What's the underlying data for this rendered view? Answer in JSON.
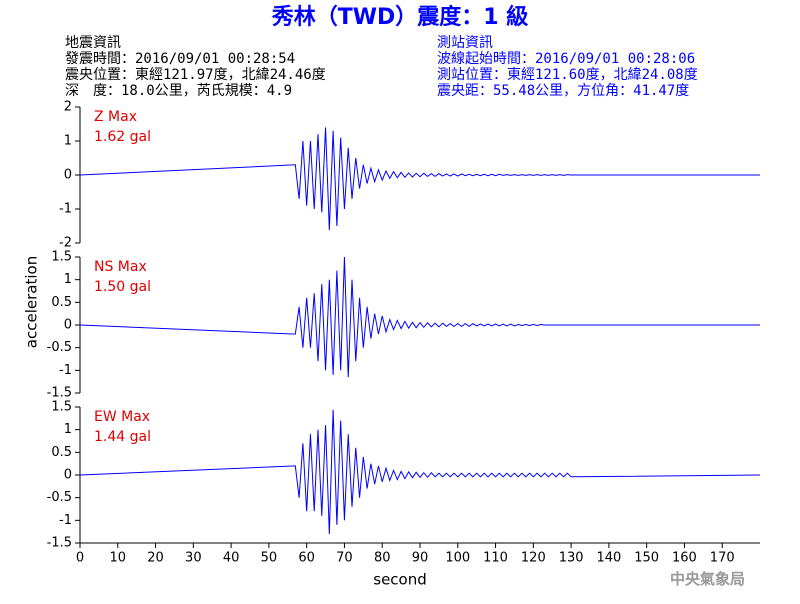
{
  "title": "秀林（TWD）震度：1 級",
  "event_info": [
    "地震資訊",
    "發震時間：2016/09/01 00:28:54",
    "震央位置：東經121.97度，北緯24.46度",
    "深　度：18.0公里，芮氏規模：4.9"
  ],
  "station_info": [
    "測站資訊",
    "波線起始時間：2016/09/01 00:28:06",
    "測站位置：東經121.60度，北緯24.08度",
    "震央距：55.48公里，方位角：41.47度"
  ],
  "ylabel": "acceleration",
  "xlabel": "second",
  "credit": "中央氣象局",
  "chart_data": [
    {
      "type": "line",
      "label": "Z Max",
      "max_label": "1.62 gal",
      "color": "#0000ff",
      "ylim": [
        -2,
        2
      ],
      "yticks": [
        -2,
        -1,
        0,
        1,
        2
      ],
      "xlim": [
        0,
        180
      ],
      "x": [
        0,
        57,
        58,
        59,
        60,
        61,
        62,
        63,
        64,
        65,
        66,
        67,
        68,
        69,
        70,
        71,
        72,
        73,
        74,
        75,
        76,
        77,
        78,
        79,
        80,
        81,
        82,
        83,
        84,
        85,
        86,
        87,
        88,
        89,
        90,
        91,
        92,
        93,
        94,
        95,
        96,
        97,
        98,
        99,
        100,
        101,
        102,
        103,
        104,
        105,
        106,
        107,
        108,
        109,
        110,
        111,
        112,
        113,
        114,
        115,
        116,
        117,
        118,
        119,
        120,
        121,
        122,
        123,
        124,
        125,
        126,
        127,
        128,
        129,
        130,
        180
      ],
      "values": [
        0,
        0.3,
        -0.7,
        1.0,
        -0.9,
        1.0,
        -1.0,
        1.2,
        -1.1,
        1.4,
        -1.62,
        1.3,
        -1.5,
        1.1,
        -1.0,
        0.8,
        -0.7,
        0.5,
        -0.4,
        0.3,
        -0.25,
        0.2,
        -0.2,
        0.15,
        -0.15,
        0.12,
        -0.1,
        0.1,
        -0.08,
        0.08,
        -0.07,
        0.06,
        -0.06,
        0.05,
        -0.05,
        0.05,
        -0.04,
        0.04,
        -0.04,
        0.04,
        -0.03,
        0.03,
        -0.03,
        0.03,
        -0.03,
        0.03,
        -0.02,
        0.02,
        -0.02,
        0.02,
        -0.02,
        0.02,
        -0.02,
        0.02,
        -0.02,
        0.02,
        -0.01,
        0.01,
        -0.01,
        0.01,
        -0.01,
        0.01,
        -0.01,
        0.01,
        -0.01,
        0.01,
        -0.01,
        0.01,
        -0.01,
        0.01,
        -0.01,
        0.01,
        -0.01,
        0.01,
        0,
        0
      ]
    },
    {
      "type": "line",
      "label": "NS Max",
      "max_label": "1.50 gal",
      "color": "#0000ff",
      "ylim": [
        -1.5,
        1.5
      ],
      "yticks": [
        -1.5,
        -1,
        -0.5,
        0,
        0.5,
        1,
        1.5
      ],
      "xlim": [
        0,
        180
      ],
      "x": [
        0,
        57,
        58,
        59,
        60,
        61,
        62,
        63,
        64,
        65,
        66,
        67,
        68,
        69,
        70,
        71,
        72,
        73,
        74,
        75,
        76,
        77,
        78,
        79,
        80,
        81,
        82,
        83,
        84,
        85,
        86,
        87,
        88,
        89,
        90,
        91,
        92,
        93,
        94,
        95,
        96,
        97,
        98,
        99,
        100,
        101,
        102,
        103,
        104,
        105,
        106,
        107,
        108,
        109,
        110,
        111,
        112,
        113,
        114,
        115,
        116,
        117,
        118,
        119,
        120,
        121,
        122,
        123,
        124,
        125,
        126,
        127,
        128,
        129,
        130,
        180
      ],
      "values": [
        0,
        -0.2,
        0.4,
        -0.5,
        0.6,
        -0.5,
        0.7,
        -0.8,
        0.9,
        -1.0,
        1.0,
        -1.1,
        1.2,
        -1.0,
        1.5,
        -1.15,
        1.0,
        -0.8,
        0.6,
        -0.5,
        0.4,
        -0.3,
        0.25,
        -0.2,
        0.2,
        -0.15,
        0.12,
        -0.1,
        0.1,
        -0.08,
        0.08,
        -0.07,
        0.06,
        -0.06,
        0.05,
        -0.05,
        0.05,
        -0.04,
        0.04,
        -0.04,
        0.04,
        -0.03,
        0.03,
        -0.03,
        0.03,
        -0.03,
        0.03,
        -0.03,
        0.03,
        -0.02,
        0.02,
        -0.02,
        0.02,
        -0.02,
        0.02,
        -0.02,
        0.02,
        -0.02,
        0.02,
        -0.02,
        0.01,
        -0.01,
        0.01,
        -0.01,
        0.01,
        -0.01,
        0.01,
        0,
        0,
        0,
        0,
        0,
        0,
        0,
        0,
        0
      ]
    },
    {
      "type": "line",
      "label": "EW Max",
      "max_label": "1.44 gal",
      "color": "#0000ff",
      "ylim": [
        -1.5,
        1.5
      ],
      "yticks": [
        -1.5,
        -1,
        -0.5,
        0,
        0.5,
        1,
        1.5
      ],
      "xlim": [
        0,
        180
      ],
      "xticks": [
        0,
        10,
        20,
        30,
        40,
        50,
        60,
        70,
        80,
        90,
        100,
        110,
        120,
        130,
        140,
        150,
        160,
        170
      ],
      "x": [
        0,
        57,
        58,
        59,
        60,
        61,
        62,
        63,
        64,
        65,
        66,
        67,
        68,
        69,
        70,
        71,
        72,
        73,
        74,
        75,
        76,
        77,
        78,
        79,
        80,
        81,
        82,
        83,
        84,
        85,
        86,
        87,
        88,
        89,
        90,
        91,
        92,
        93,
        94,
        95,
        96,
        97,
        98,
        99,
        100,
        101,
        102,
        103,
        104,
        105,
        106,
        107,
        108,
        109,
        110,
        111,
        112,
        113,
        114,
        115,
        116,
        117,
        118,
        119,
        120,
        121,
        122,
        123,
        124,
        125,
        126,
        127,
        128,
        129,
        130,
        180
      ],
      "values": [
        0,
        0.2,
        -0.5,
        0.7,
        -0.8,
        0.9,
        -0.8,
        1.0,
        -0.9,
        1.1,
        -1.3,
        1.44,
        -1.1,
        1.2,
        -1.0,
        0.9,
        -0.7,
        0.6,
        -0.5,
        0.4,
        -0.3,
        0.25,
        -0.2,
        0.2,
        -0.15,
        0.15,
        -0.12,
        0.1,
        -0.1,
        0.08,
        -0.08,
        0.07,
        -0.06,
        0.06,
        -0.05,
        0.05,
        -0.05,
        0.05,
        -0.04,
        0.04,
        -0.04,
        0.04,
        -0.04,
        0.04,
        -0.04,
        0.04,
        -0.04,
        0.04,
        -0.04,
        0.04,
        -0.04,
        0.04,
        -0.04,
        0.04,
        -0.04,
        0.04,
        -0.04,
        0.04,
        -0.04,
        0.04,
        -0.04,
        0.04,
        -0.04,
        0.04,
        -0.04,
        0.04,
        -0.04,
        0.04,
        -0.04,
        0.04,
        -0.04,
        0.04,
        -0.04,
        0.04,
        -0.04,
        0
      ]
    }
  ]
}
